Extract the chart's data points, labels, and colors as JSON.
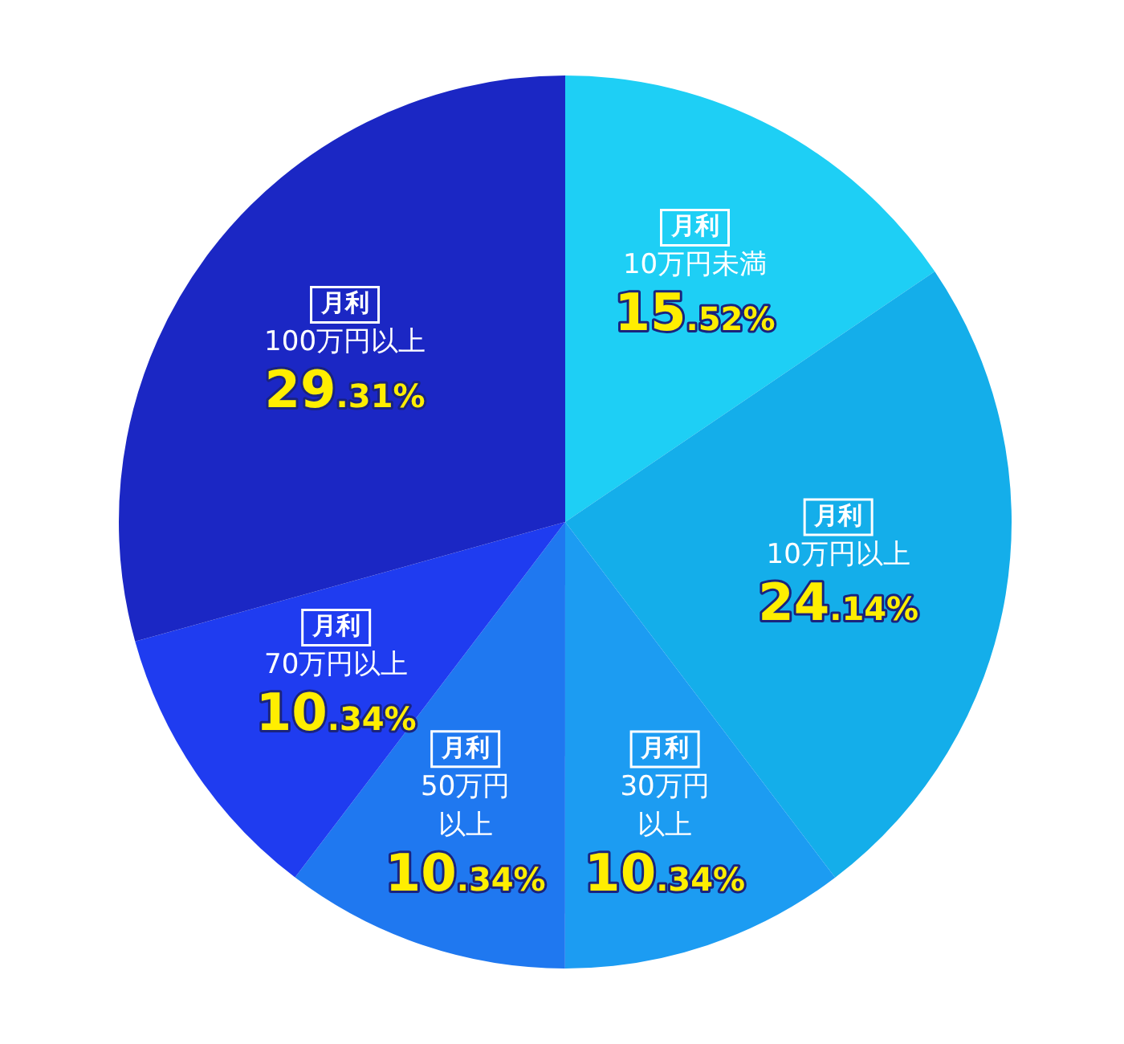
{
  "chart_data": {
    "type": "pie",
    "categories": [
      "月利\n10万円未満",
      "月利\n10万円以上",
      "月利\n30万円以上",
      "月利\n50万円以上",
      "月利\n70万円以上",
      "月利\n100万円以上"
    ],
    "values": [
      15.52,
      24.14,
      10.34,
      10.34,
      10.34,
      29.31
    ],
    "value_labels": [
      "15.52%",
      "24.14%",
      "10.34%",
      "10.34%",
      "10.34%",
      "29.31%"
    ],
    "colors": [
      "#1ecff5",
      "#14aeea",
      "#1c9cf2",
      "#1f78f0",
      "#1f3cf0",
      "#1b27c4"
    ],
    "legend": false
  }
}
